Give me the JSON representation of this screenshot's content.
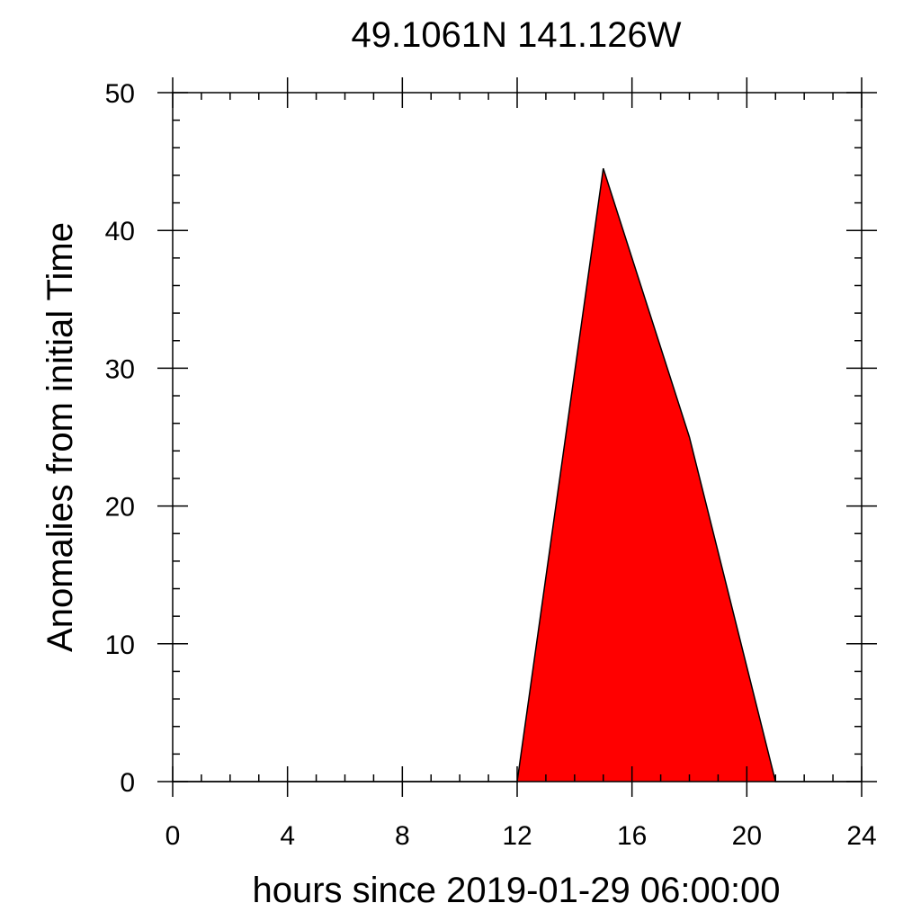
{
  "chart_data": {
    "type": "area",
    "title": "49.1061N  141.126W",
    "xlabel": "hours since 2019-01-29 06:00:00",
    "ylabel": "Anomalies from initial Time",
    "xlim": [
      0,
      24
    ],
    "ylim": [
      0,
      50
    ],
    "x_ticks": [
      0,
      4,
      8,
      12,
      16,
      20,
      24
    ],
    "y_ticks": [
      0,
      10,
      20,
      30,
      40,
      50
    ],
    "x": [
      0,
      3,
      6,
      9,
      12,
      15,
      18,
      21,
      24
    ],
    "values": [
      0,
      0,
      0,
      0,
      0,
      44.5,
      25,
      0,
      0
    ],
    "fill_color": "#ff0000",
    "line_color": "#000000",
    "grid": false
  }
}
